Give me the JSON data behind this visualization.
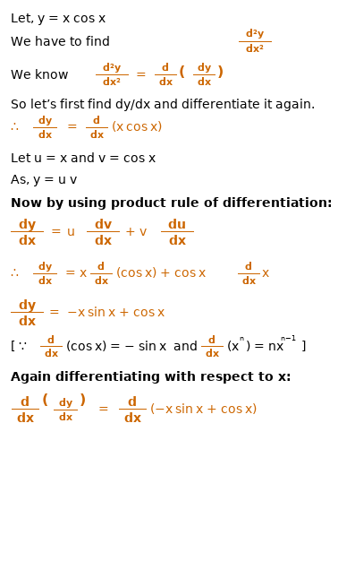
{
  "background_color": "#ffffff",
  "text_color": "#000000",
  "orange_color": "#cc6600",
  "fig_width": 3.78,
  "fig_height": 6.36,
  "dpi": 100
}
